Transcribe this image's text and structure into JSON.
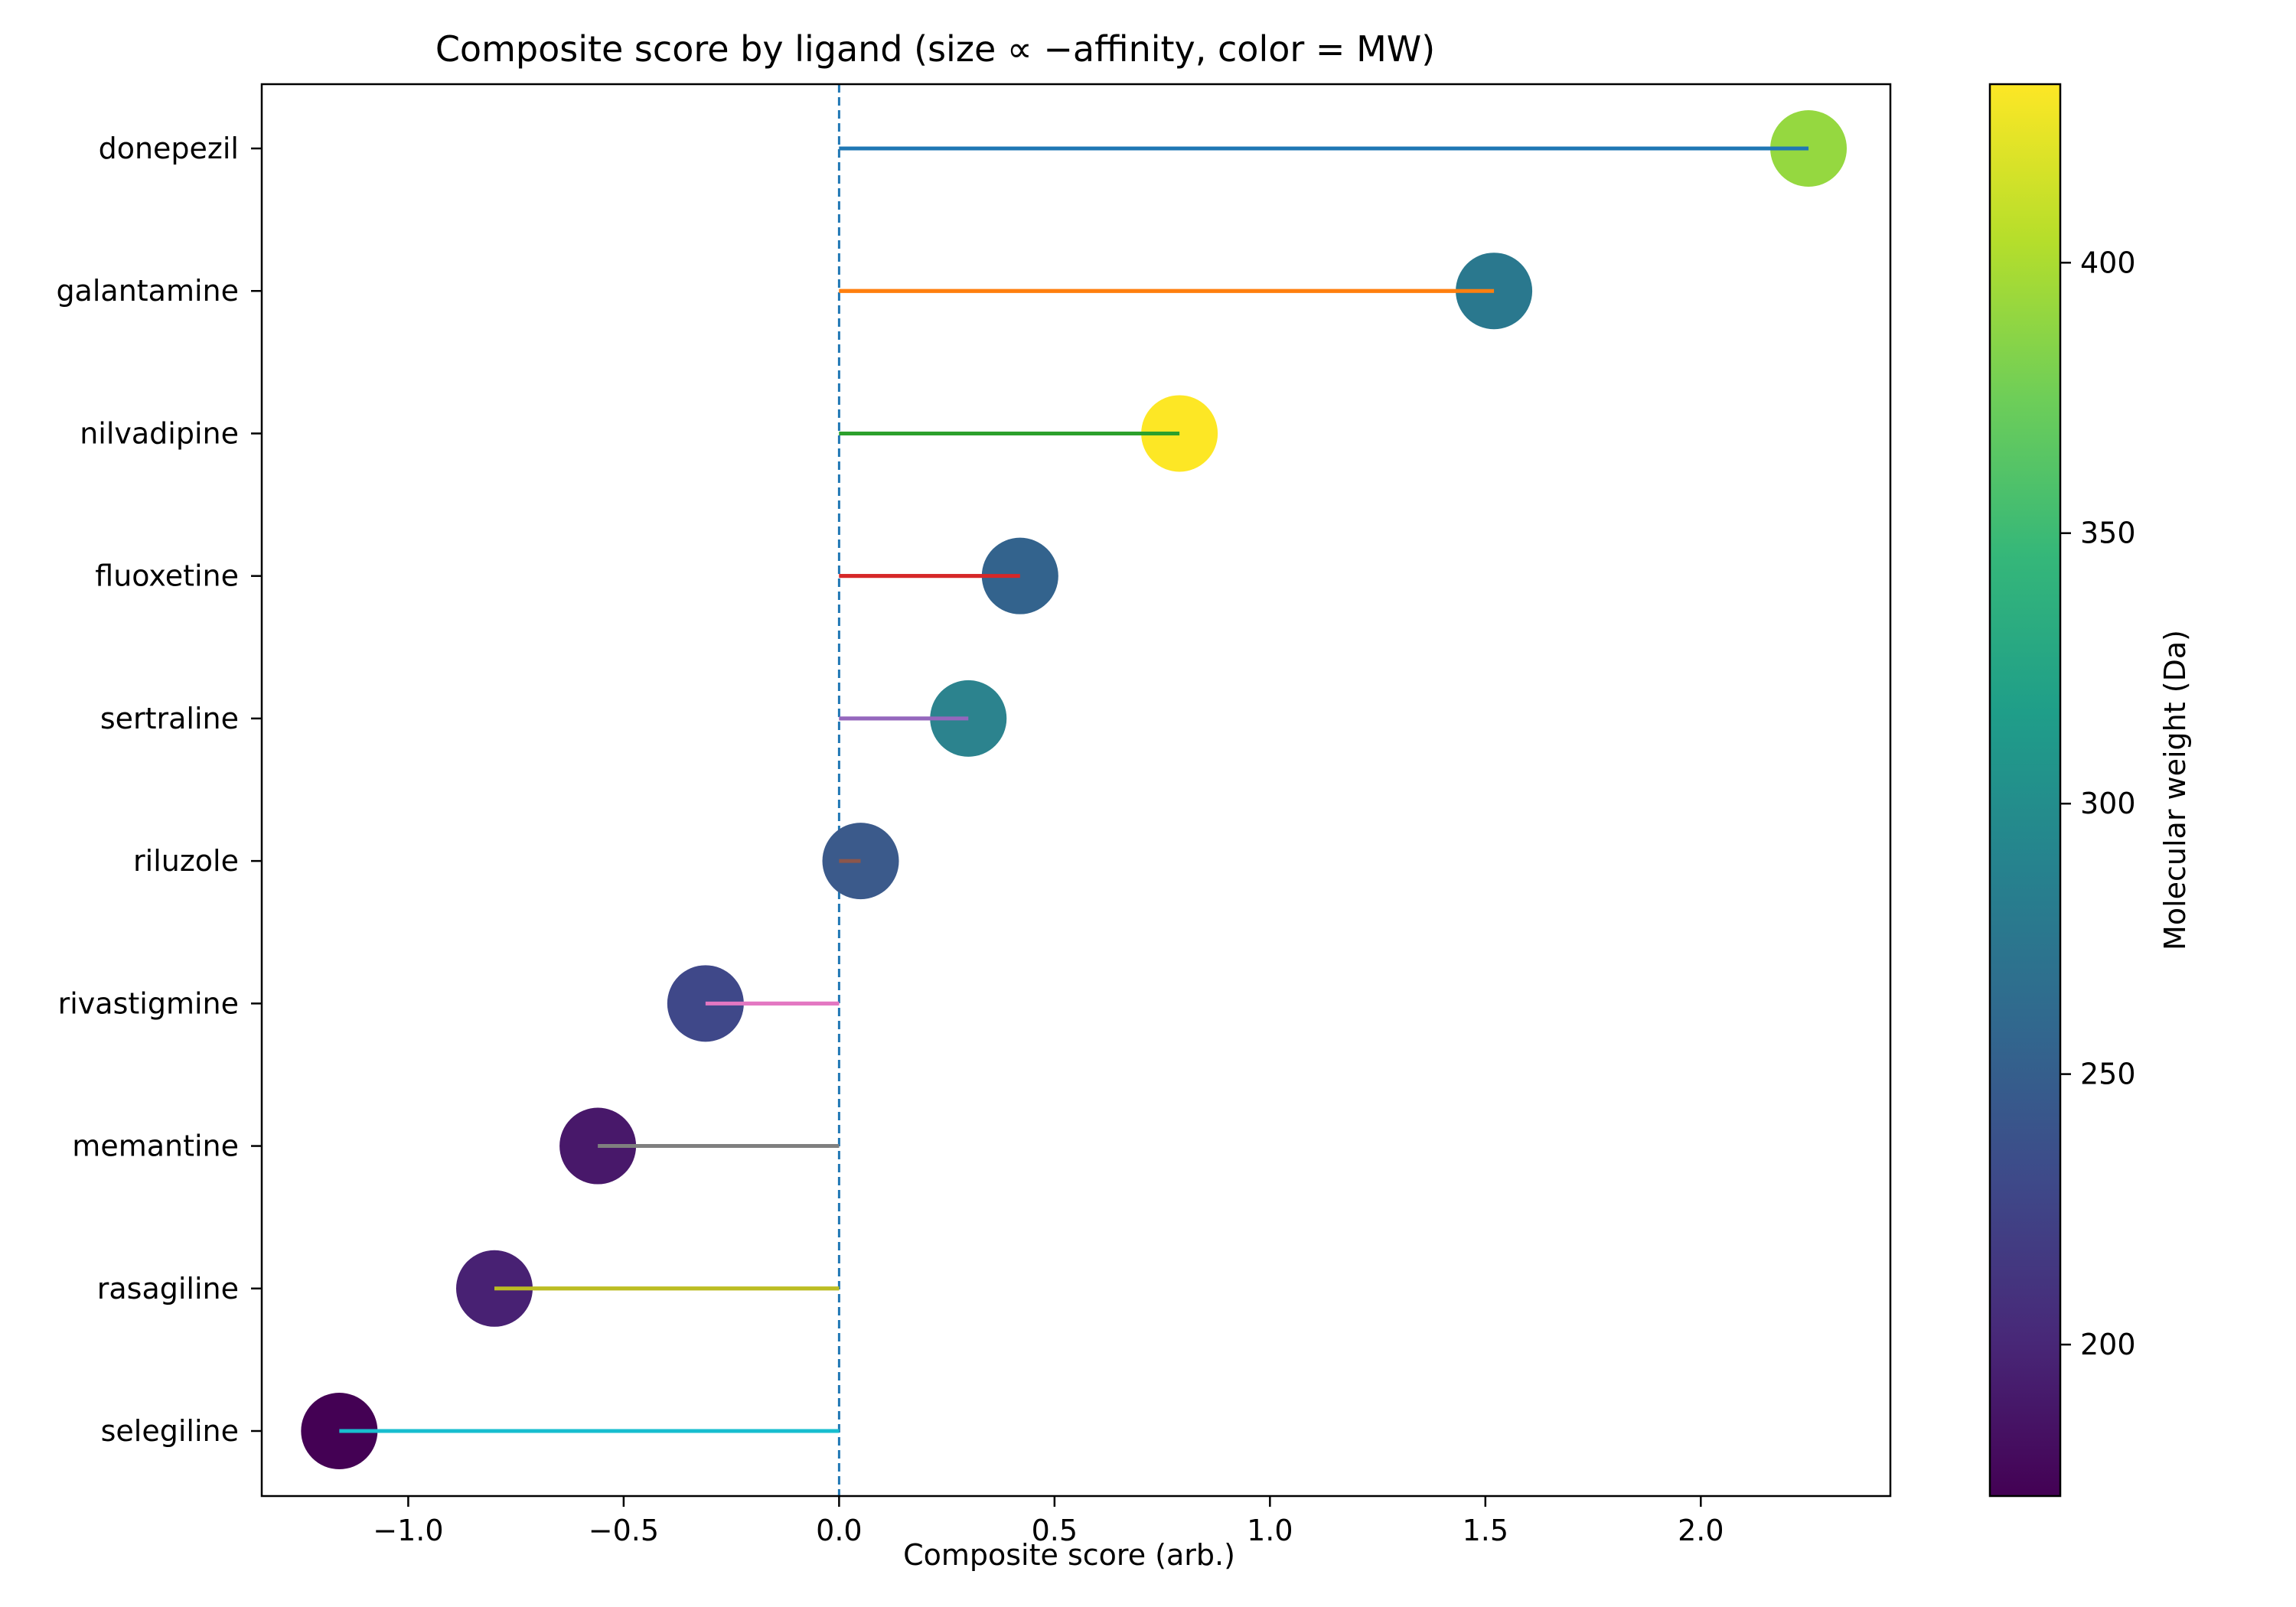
{
  "chart_data": {
    "type": "lollipop",
    "title": "Composite score by ligand (size ∝ −affinity, color = MW)",
    "xlabel": "Composite score (arb.)",
    "ylabel": "",
    "xlim": [
      -1.34,
      2.44
    ],
    "xticks": [
      -1.0,
      -0.5,
      0.0,
      0.5,
      1.0,
      1.5,
      2.0
    ],
    "xtick_labels": [
      "−1.0",
      "−0.5",
      "0.0",
      "0.5",
      "1.0",
      "1.5",
      "2.0"
    ],
    "reference_line": {
      "x": 0.0,
      "style": "dashed",
      "color": "#1f77b4"
    },
    "grid": false,
    "points": [
      {
        "label": "donepezil",
        "score": 2.25,
        "mw": 380,
        "stem_color": "#1f77b4",
        "marker_color": "#95d840"
      },
      {
        "label": "galantamine",
        "score": 1.52,
        "mw": 287,
        "stem_color": "#ff7f0e",
        "marker_color": "#2a788e"
      },
      {
        "label": "nilvadipine",
        "score": 0.79,
        "mw": 432,
        "stem_color": "#2ca02c",
        "marker_color": "#fde725"
      },
      {
        "label": "fluoxetine",
        "score": 0.42,
        "mw": 265,
        "stem_color": "#d62728",
        "marker_color": "#33638d"
      },
      {
        "label": "sertraline",
        "score": 0.3,
        "mw": 290,
        "stem_color": "#9467bd",
        "marker_color": "#2c838e"
      },
      {
        "label": "riluzole",
        "score": 0.05,
        "mw": 252,
        "stem_color": "#8c564b",
        "marker_color": "#3b5a8b"
      },
      {
        "label": "rivastigmine",
        "score": -0.31,
        "mw": 226,
        "stem_color": "#e377c2",
        "marker_color": "#3f4889"
      },
      {
        "label": "memantine",
        "score": -0.56,
        "mw": 179,
        "stem_color": "#7f7f7f",
        "marker_color": "#48186a"
      },
      {
        "label": "rasagiline",
        "score": -0.8,
        "mw": 195,
        "stem_color": "#bcbd22",
        "marker_color": "#482173"
      },
      {
        "label": "selegiline",
        "score": -1.16,
        "mw": 172,
        "stem_color": "#17becf",
        "marker_color": "#440154"
      }
    ],
    "colorbar": {
      "label": "Molecular weight (Da)",
      "range": [
        172,
        433
      ],
      "ticks": [
        200,
        250,
        300,
        350,
        400
      ],
      "colormap": "viridis",
      "stops": [
        "#440154",
        "#482878",
        "#3e4989",
        "#31688e",
        "#26828e",
        "#1f9e89",
        "#35b779",
        "#6ece58",
        "#b5de2b",
        "#fde725"
      ]
    }
  }
}
